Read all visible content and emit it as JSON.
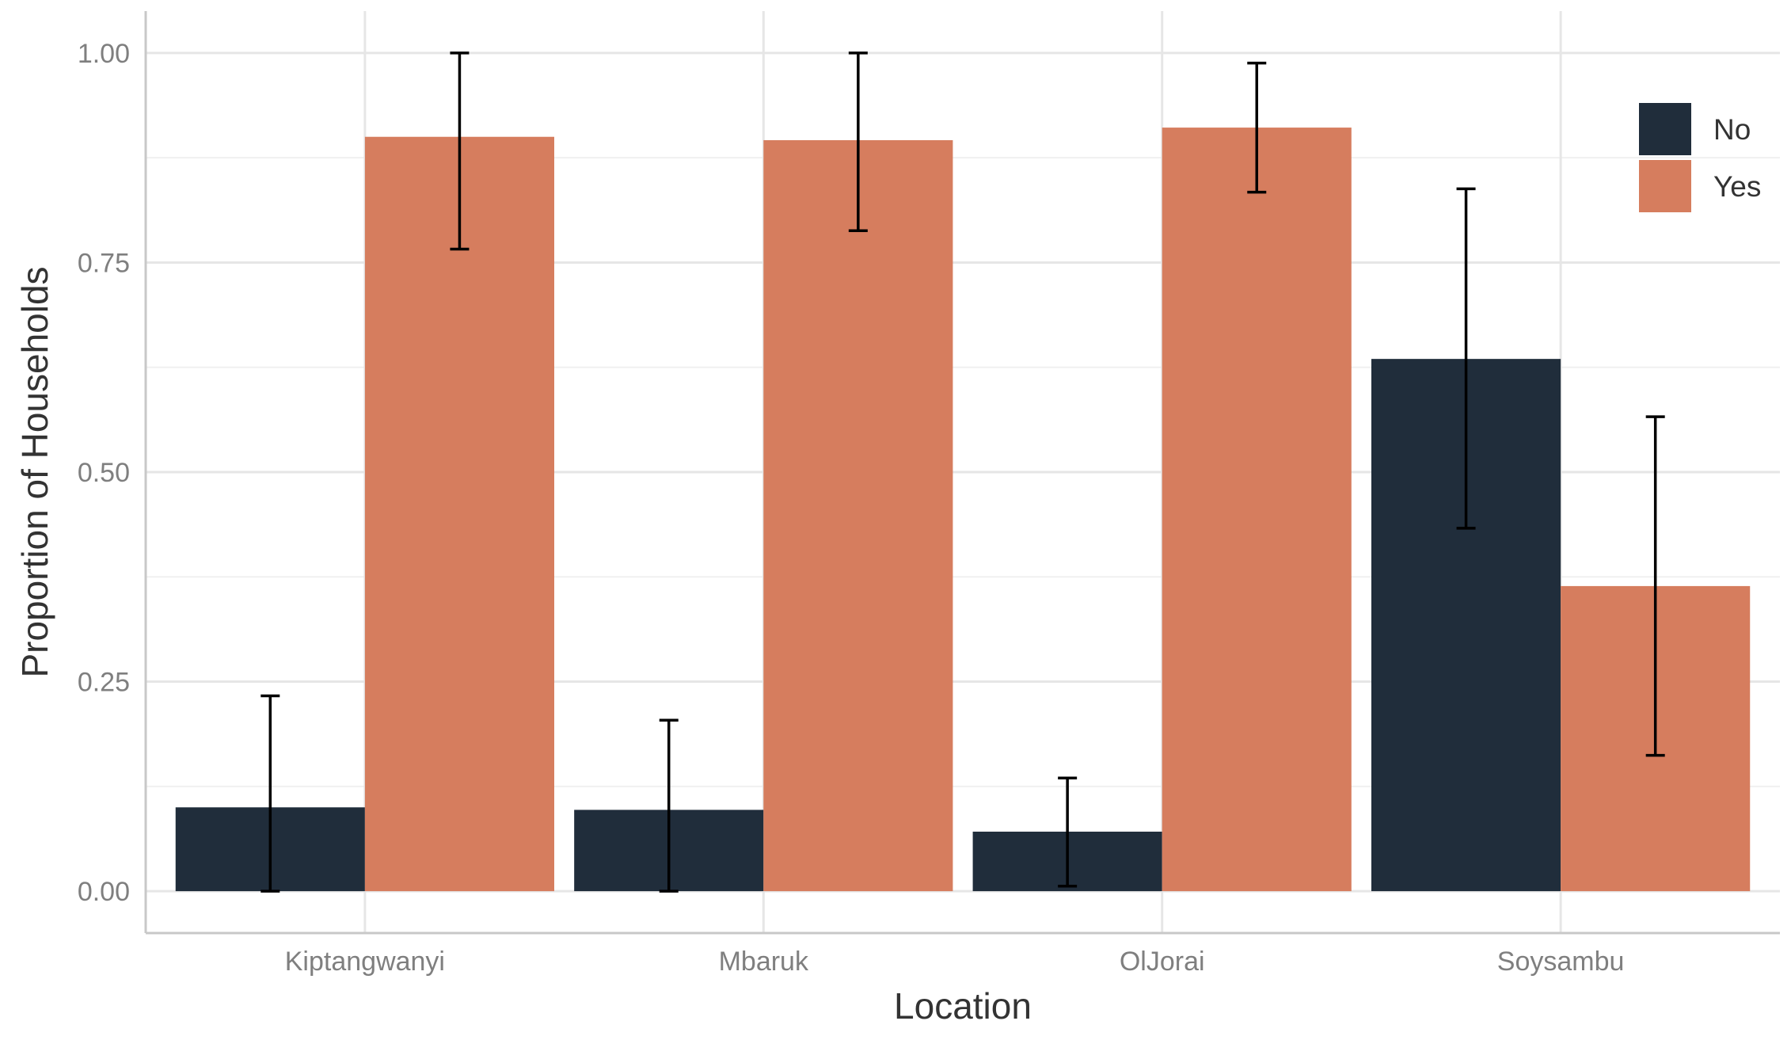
{
  "chart_data": {
    "type": "bar",
    "xlabel": "Location",
    "ylabel": "Proportion of Households",
    "categories": [
      "Kiptangwanyi",
      "Mbaruk",
      "OlJorai",
      "Soysambu"
    ],
    "ylim": [
      -0.05,
      1.05
    ],
    "yticks": [
      0.0,
      0.25,
      0.5,
      0.75,
      1.0
    ],
    "ytick_labels": [
      "0.00",
      "0.25",
      "0.50",
      "0.75",
      "1.00"
    ],
    "grid": true,
    "legend_position": "top-right",
    "error_bars": true,
    "series": [
      {
        "name": "No",
        "color": "#202d3b",
        "values": [
          0.1,
          0.097,
          0.071,
          0.635
        ],
        "error_low": [
          0.0,
          0.0,
          0.006,
          0.433
        ],
        "error_high": [
          0.233,
          0.204,
          0.135,
          0.838
        ]
      },
      {
        "name": "Yes",
        "color": "#d67d5e",
        "values": [
          0.9,
          0.896,
          0.911,
          0.364
        ],
        "error_low": [
          0.766,
          0.788,
          0.834,
          0.162
        ],
        "error_high": [
          1.0,
          1.0,
          0.988,
          0.566
        ]
      }
    ]
  }
}
